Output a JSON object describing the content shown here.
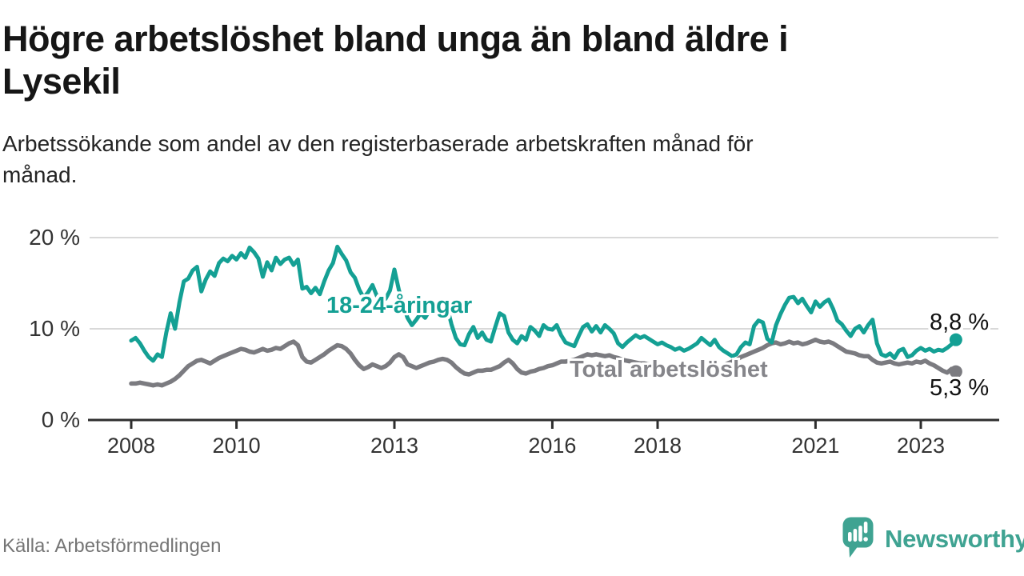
{
  "title": {
    "full": "Högre arbetslöshet bland unga än bland äldre i Lysekil",
    "line1": "Högre arbetslöshet bland unga än bland äldre i",
    "line2": "Lysekil"
  },
  "subtitle": {
    "full": "Arbetssökande som andel av den registerbaserade arbetskraften månad för månad.",
    "line1": "Arbetssökande som andel av den registerbaserade arbetskraften månad för",
    "line2": "månad."
  },
  "source": "Källa: Arbetsförmedlingen",
  "brand": {
    "name": "Newsworthy",
    "color": "#3fa392"
  },
  "colors": {
    "youth_line": "#14a094",
    "youth_label": "#14a094",
    "total_line": "#7b7b80",
    "total_label": "#85858a",
    "grid": "#d9d9d9",
    "axis": "#2e2e2e",
    "tick_label": "#333333",
    "value_label": "#111111",
    "background": "#ffffff"
  },
  "chart_data": {
    "type": "line",
    "title": "Högre arbetslöshet bland unga än bland äldre i Lysekil",
    "subtitle": "Arbetssökande som andel av den registerbaserade arbetskraften månad för månad.",
    "x_unit": "month",
    "x_start_year": 2008,
    "x_step_months": 1,
    "x_ticks": [
      2008,
      2010,
      2013,
      2016,
      2018,
      2021,
      2023
    ],
    "y_ticks": [
      {
        "value": 0,
        "label": "0 %"
      },
      {
        "value": 10,
        "label": "10 %"
      },
      {
        "value": 20,
        "label": "20 %"
      }
    ],
    "grid_values": [
      10,
      20
    ],
    "ylim": [
      0,
      20.6
    ],
    "legend_position": "inline-labels",
    "series": [
      {
        "id": "youth",
        "name": "18-24-åringar",
        "end_label": "8,8 %",
        "end_value": 8.8,
        "values": [
          8.7,
          9.0,
          8.4,
          7.6,
          6.9,
          6.5,
          7.2,
          6.9,
          9.6,
          11.7,
          10.0,
          12.9,
          15.2,
          15.5,
          16.4,
          16.8,
          14.1,
          15.4,
          16.3,
          15.8,
          17.2,
          17.7,
          17.4,
          18.0,
          17.6,
          18.3,
          17.8,
          18.9,
          18.4,
          17.7,
          15.7,
          17.3,
          16.4,
          17.8,
          17.1,
          17.6,
          17.8,
          17.0,
          17.6,
          14.4,
          14.6,
          13.9,
          14.5,
          13.8,
          15.2,
          16.4,
          17.2,
          19.0,
          18.2,
          17.5,
          16.2,
          15.6,
          14.3,
          13.4,
          14.0,
          14.8,
          13.6,
          12.9,
          13.3,
          14.2,
          16.5,
          14.3,
          12.6,
          11.2,
          10.4,
          11.0,
          11.7,
          11.2,
          12.0,
          12.4,
          12.2,
          12.4,
          12.4,
          10.5,
          9.0,
          8.3,
          8.2,
          9.4,
          10.2,
          9.0,
          9.6,
          8.8,
          8.6,
          10.2,
          11.7,
          11.4,
          9.6,
          8.8,
          8.4,
          9.2,
          8.8,
          10.2,
          9.8,
          9.2,
          10.4,
          10.0,
          9.9,
          10.4,
          9.3,
          8.5,
          8.3,
          8.1,
          9.2,
          10.2,
          10.5,
          9.7,
          10.3,
          9.6,
          10.4,
          10.0,
          9.5,
          8.4,
          8.0,
          8.5,
          8.9,
          9.3,
          9.0,
          9.2,
          8.9,
          8.6,
          8.3,
          8.5,
          8.2,
          8.0,
          7.7,
          7.9,
          7.6,
          7.8,
          8.1,
          8.4,
          9.0,
          8.6,
          8.2,
          8.8,
          8.0,
          7.6,
          7.3,
          7.0,
          7.2,
          8.0,
          8.5,
          8.3,
          10.3,
          10.9,
          10.7,
          8.9,
          8.5,
          10.4,
          11.6,
          12.6,
          13.4,
          13.5,
          12.8,
          13.3,
          12.5,
          11.8,
          13.0,
          12.4,
          12.9,
          13.2,
          12.2,
          10.9,
          10.5,
          9.8,
          9.2,
          10.0,
          10.3,
          9.6,
          10.4,
          11.0,
          8.4,
          7.2,
          7.0,
          7.3,
          6.8,
          7.6,
          7.8,
          6.9,
          7.1,
          7.6,
          7.9,
          7.6,
          7.8,
          7.5,
          7.7,
          7.6,
          7.9,
          8.3,
          8.8
        ]
      },
      {
        "id": "total",
        "name": "Total arbetslöshet",
        "end_label": "5,3 %",
        "end_value": 5.3,
        "values": [
          4.0,
          4.0,
          4.1,
          4.0,
          3.9,
          3.8,
          3.9,
          3.8,
          4.0,
          4.2,
          4.5,
          4.9,
          5.4,
          5.9,
          6.2,
          6.5,
          6.6,
          6.4,
          6.2,
          6.5,
          6.8,
          7.0,
          7.2,
          7.4,
          7.6,
          7.8,
          7.7,
          7.5,
          7.4,
          7.6,
          7.8,
          7.6,
          7.7,
          7.9,
          7.8,
          8.1,
          8.4,
          8.6,
          8.2,
          6.9,
          6.4,
          6.3,
          6.6,
          6.9,
          7.2,
          7.6,
          7.9,
          8.2,
          8.1,
          7.8,
          7.3,
          6.6,
          6.0,
          5.6,
          5.8,
          6.1,
          5.9,
          5.7,
          5.9,
          6.3,
          6.9,
          7.2,
          6.9,
          6.1,
          5.9,
          5.7,
          5.9,
          6.1,
          6.3,
          6.4,
          6.6,
          6.7,
          6.6,
          6.3,
          5.8,
          5.4,
          5.1,
          5.0,
          5.2,
          5.4,
          5.4,
          5.5,
          5.5,
          5.7,
          5.9,
          6.3,
          6.6,
          6.2,
          5.6,
          5.2,
          5.1,
          5.3,
          5.4,
          5.6,
          5.7,
          5.9,
          6.0,
          6.2,
          6.4,
          6.4,
          6.5,
          6.6,
          6.8,
          7.0,
          7.2,
          7.1,
          7.2,
          7.1,
          7.0,
          7.1,
          6.9,
          6.8,
          6.6,
          6.5,
          6.4,
          6.3,
          6.2,
          6.2,
          6.1,
          6.0,
          5.9,
          5.9,
          5.8,
          5.7,
          5.6,
          5.6,
          5.7,
          5.7,
          5.6,
          5.6,
          5.7,
          5.6,
          5.6,
          5.7,
          5.8,
          6.0,
          6.2,
          6.4,
          6.6,
          6.9,
          7.1,
          7.3,
          7.5,
          7.7,
          7.9,
          8.2,
          8.4,
          8.5,
          8.3,
          8.4,
          8.6,
          8.4,
          8.5,
          8.3,
          8.4,
          8.6,
          8.8,
          8.6,
          8.5,
          8.6,
          8.4,
          8.1,
          7.8,
          7.5,
          7.4,
          7.3,
          7.1,
          7.0,
          7.0,
          6.6,
          6.3,
          6.2,
          6.3,
          6.4,
          6.2,
          6.1,
          6.2,
          6.3,
          6.2,
          6.4,
          6.3,
          6.5,
          6.2,
          6.0,
          5.7,
          5.4,
          5.2,
          5.6,
          5.3
        ]
      }
    ]
  }
}
